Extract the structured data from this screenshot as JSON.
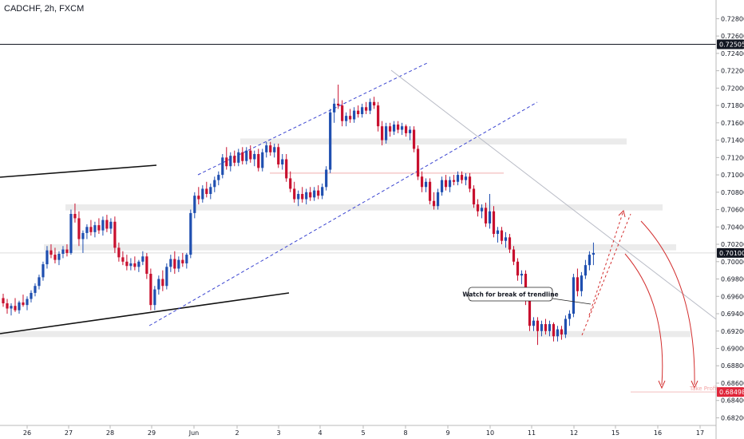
{
  "chart_data": {
    "type": "candlestick",
    "title": "CADCHF, 2h, FXCM",
    "symbol": "CADCHF",
    "interval": "2h",
    "source": "FXCM",
    "ylim": [
      0.6814,
      0.7296
    ],
    "y_ticks": [
      "0.72800",
      "0.72600",
      "0.72400",
      "0.72200",
      "0.72000",
      "0.71800",
      "0.71600",
      "0.71400",
      "0.71200",
      "0.71000",
      "0.70800",
      "0.70600",
      "0.70400",
      "0.70200",
      "0.70000",
      "0.69800",
      "0.69600",
      "0.69400",
      "0.69200",
      "0.69000",
      "0.68800",
      "0.68600",
      "0.68400",
      "0.68200"
    ],
    "x_ticks": [
      "26",
      "27",
      "28",
      "29",
      "Jun",
      "2",
      "3",
      "4",
      "5",
      "8",
      "9",
      "10",
      "11",
      "12",
      "15",
      "16",
      "17"
    ],
    "price_markers": [
      {
        "label": "0.72505",
        "value": 0.72505,
        "color": "#131722"
      },
      {
        "label": "0.70100",
        "value": 0.701,
        "color": "#131722"
      },
      {
        "label": "0.68498",
        "value": 0.68498,
        "color": "#e0263a"
      }
    ],
    "annotations": {
      "note": "Watch for break of trendline",
      "take_profit": "Take Profit"
    },
    "colors": {
      "up": "#1f4fb0",
      "down": "#c8102e",
      "grid": "#e6e6e6",
      "zone": "#ebebeb",
      "channel": "#3b45d1",
      "target": "#d32f2f"
    },
    "zones": [
      {
        "low": 0.7135,
        "high": 0.7142
      },
      {
        "low": 0.7059,
        "high": 0.7066
      },
      {
        "low": 0.7013,
        "high": 0.702
      },
      {
        "low": 0.6913,
        "high": 0.692
      }
    ],
    "candles": [
      {
        "o": 0.6958,
        "h": 0.6963,
        "l": 0.6948,
        "c": 0.6952
      },
      {
        "o": 0.6952,
        "h": 0.6957,
        "l": 0.694,
        "c": 0.6946
      },
      {
        "o": 0.6946,
        "h": 0.6952,
        "l": 0.6938,
        "c": 0.6949
      },
      {
        "o": 0.6949,
        "h": 0.6958,
        "l": 0.6942,
        "c": 0.6944
      },
      {
        "o": 0.6944,
        "h": 0.6955,
        "l": 0.694,
        "c": 0.6953
      },
      {
        "o": 0.6953,
        "h": 0.6962,
        "l": 0.6948,
        "c": 0.695
      },
      {
        "o": 0.695,
        "h": 0.696,
        "l": 0.6944,
        "c": 0.6957
      },
      {
        "o": 0.6957,
        "h": 0.6967,
        "l": 0.6953,
        "c": 0.6964
      },
      {
        "o": 0.6964,
        "h": 0.6975,
        "l": 0.696,
        "c": 0.6972
      },
      {
        "o": 0.6972,
        "h": 0.6985,
        "l": 0.6968,
        "c": 0.6982
      },
      {
        "o": 0.6982,
        "h": 0.7,
        "l": 0.6978,
        "c": 0.6997
      },
      {
        "o": 0.6997,
        "h": 0.7018,
        "l": 0.6992,
        "c": 0.7013
      },
      {
        "o": 0.7013,
        "h": 0.702,
        "l": 0.7004,
        "c": 0.7008
      },
      {
        "o": 0.7008,
        "h": 0.7016,
        "l": 0.6998,
        "c": 0.7002
      },
      {
        "o": 0.7002,
        "h": 0.7012,
        "l": 0.6996,
        "c": 0.7009
      },
      {
        "o": 0.7009,
        "h": 0.7018,
        "l": 0.7004,
        "c": 0.7014
      },
      {
        "o": 0.7014,
        "h": 0.702,
        "l": 0.7006,
        "c": 0.701
      },
      {
        "o": 0.701,
        "h": 0.706,
        "l": 0.7008,
        "c": 0.7055
      },
      {
        "o": 0.7055,
        "h": 0.7067,
        "l": 0.7045,
        "c": 0.705
      },
      {
        "o": 0.705,
        "h": 0.7058,
        "l": 0.7018,
        "c": 0.7026
      },
      {
        "o": 0.7026,
        "h": 0.7036,
        "l": 0.701,
        "c": 0.7033
      },
      {
        "o": 0.7033,
        "h": 0.7043,
        "l": 0.7026,
        "c": 0.704
      },
      {
        "o": 0.704,
        "h": 0.7048,
        "l": 0.703,
        "c": 0.7034
      },
      {
        "o": 0.7034,
        "h": 0.7046,
        "l": 0.7028,
        "c": 0.7042
      },
      {
        "o": 0.7042,
        "h": 0.705,
        "l": 0.7032,
        "c": 0.7036
      },
      {
        "o": 0.7036,
        "h": 0.7052,
        "l": 0.703,
        "c": 0.7048
      },
      {
        "o": 0.7048,
        "h": 0.7054,
        "l": 0.7034,
        "c": 0.7038
      },
      {
        "o": 0.7038,
        "h": 0.705,
        "l": 0.7032,
        "c": 0.7046
      },
      {
        "o": 0.7046,
        "h": 0.7052,
        "l": 0.701,
        "c": 0.7016
      },
      {
        "o": 0.7016,
        "h": 0.7022,
        "l": 0.7,
        "c": 0.7005
      },
      {
        "o": 0.7005,
        "h": 0.7012,
        "l": 0.6996,
        "c": 0.7
      },
      {
        "o": 0.7,
        "h": 0.7008,
        "l": 0.699,
        "c": 0.6995
      },
      {
        "o": 0.6995,
        "h": 0.7004,
        "l": 0.699,
        "c": 0.6998
      },
      {
        "o": 0.6998,
        "h": 0.7006,
        "l": 0.699,
        "c": 0.6994
      },
      {
        "o": 0.6994,
        "h": 0.7002,
        "l": 0.6988,
        "c": 0.7
      },
      {
        "o": 0.7,
        "h": 0.7012,
        "l": 0.6996,
        "c": 0.7006
      },
      {
        "o": 0.7006,
        "h": 0.701,
        "l": 0.698,
        "c": 0.6986
      },
      {
        "o": 0.6986,
        "h": 0.6992,
        "l": 0.6944,
        "c": 0.695
      },
      {
        "o": 0.695,
        "h": 0.6972,
        "l": 0.6944,
        "c": 0.6968
      },
      {
        "o": 0.6968,
        "h": 0.6984,
        "l": 0.6962,
        "c": 0.698
      },
      {
        "o": 0.698,
        "h": 0.699,
        "l": 0.6966,
        "c": 0.6972
      },
      {
        "o": 0.6972,
        "h": 0.6998,
        "l": 0.6968,
        "c": 0.6994
      },
      {
        "o": 0.6994,
        "h": 0.7008,
        "l": 0.6988,
        "c": 0.7003
      },
      {
        "o": 0.7003,
        "h": 0.7012,
        "l": 0.6986,
        "c": 0.6992
      },
      {
        "o": 0.6992,
        "h": 0.7006,
        "l": 0.6988,
        "c": 0.7002
      },
      {
        "o": 0.7002,
        "h": 0.701,
        "l": 0.6994,
        "c": 0.6998
      },
      {
        "o": 0.6998,
        "h": 0.701,
        "l": 0.6992,
        "c": 0.7008
      },
      {
        "o": 0.7008,
        "h": 0.706,
        "l": 0.7004,
        "c": 0.7056
      },
      {
        "o": 0.7056,
        "h": 0.708,
        "l": 0.705,
        "c": 0.7076
      },
      {
        "o": 0.7076,
        "h": 0.7086,
        "l": 0.7066,
        "c": 0.7072
      },
      {
        "o": 0.7072,
        "h": 0.7088,
        "l": 0.7068,
        "c": 0.7084
      },
      {
        "o": 0.7084,
        "h": 0.7092,
        "l": 0.7074,
        "c": 0.7078
      },
      {
        "o": 0.7078,
        "h": 0.709,
        "l": 0.7072,
        "c": 0.7086
      },
      {
        "o": 0.7086,
        "h": 0.7098,
        "l": 0.708,
        "c": 0.7094
      },
      {
        "o": 0.7094,
        "h": 0.7104,
        "l": 0.7088,
        "c": 0.71
      },
      {
        "o": 0.71,
        "h": 0.7124,
        "l": 0.7096,
        "c": 0.712
      },
      {
        "o": 0.712,
        "h": 0.7132,
        "l": 0.7106,
        "c": 0.711
      },
      {
        "o": 0.711,
        "h": 0.7126,
        "l": 0.7104,
        "c": 0.7122
      },
      {
        "o": 0.7122,
        "h": 0.7128,
        "l": 0.711,
        "c": 0.7114
      },
      {
        "o": 0.7114,
        "h": 0.713,
        "l": 0.711,
        "c": 0.7126
      },
      {
        "o": 0.7126,
        "h": 0.7132,
        "l": 0.7112,
        "c": 0.7116
      },
      {
        "o": 0.7116,
        "h": 0.7132,
        "l": 0.7112,
        "c": 0.7128
      },
      {
        "o": 0.7128,
        "h": 0.7134,
        "l": 0.7114,
        "c": 0.7118
      },
      {
        "o": 0.7118,
        "h": 0.7128,
        "l": 0.711,
        "c": 0.7124
      },
      {
        "o": 0.7124,
        "h": 0.713,
        "l": 0.7104,
        "c": 0.7108
      },
      {
        "o": 0.7108,
        "h": 0.713,
        "l": 0.7104,
        "c": 0.7126
      },
      {
        "o": 0.7126,
        "h": 0.7138,
        "l": 0.712,
        "c": 0.7134
      },
      {
        "o": 0.7134,
        "h": 0.7138,
        "l": 0.7122,
        "c": 0.7126
      },
      {
        "o": 0.7126,
        "h": 0.7136,
        "l": 0.712,
        "c": 0.7132
      },
      {
        "o": 0.7132,
        "h": 0.7136,
        "l": 0.7108,
        "c": 0.7112
      },
      {
        "o": 0.7112,
        "h": 0.7124,
        "l": 0.7106,
        "c": 0.7118
      },
      {
        "o": 0.7118,
        "h": 0.7124,
        "l": 0.7092,
        "c": 0.7096
      },
      {
        "o": 0.7096,
        "h": 0.7104,
        "l": 0.708,
        "c": 0.7084
      },
      {
        "o": 0.7084,
        "h": 0.7092,
        "l": 0.7068,
        "c": 0.7072
      },
      {
        "o": 0.7072,
        "h": 0.7082,
        "l": 0.7064,
        "c": 0.7078
      },
      {
        "o": 0.7078,
        "h": 0.7086,
        "l": 0.7068,
        "c": 0.7072
      },
      {
        "o": 0.7072,
        "h": 0.7084,
        "l": 0.7066,
        "c": 0.708
      },
      {
        "o": 0.708,
        "h": 0.7086,
        "l": 0.707,
        "c": 0.7074
      },
      {
        "o": 0.7074,
        "h": 0.7086,
        "l": 0.707,
        "c": 0.7082
      },
      {
        "o": 0.7082,
        "h": 0.7088,
        "l": 0.7072,
        "c": 0.7076
      },
      {
        "o": 0.7076,
        "h": 0.709,
        "l": 0.7072,
        "c": 0.7086
      },
      {
        "o": 0.7086,
        "h": 0.711,
        "l": 0.7082,
        "c": 0.7106
      },
      {
        "o": 0.7106,
        "h": 0.7176,
        "l": 0.7102,
        "c": 0.7172
      },
      {
        "o": 0.7172,
        "h": 0.7188,
        "l": 0.716,
        "c": 0.7182
      },
      {
        "o": 0.7182,
        "h": 0.7204,
        "l": 0.7176,
        "c": 0.718
      },
      {
        "o": 0.718,
        "h": 0.7186,
        "l": 0.7156,
        "c": 0.7162
      },
      {
        "o": 0.7162,
        "h": 0.7172,
        "l": 0.7156,
        "c": 0.7168
      },
      {
        "o": 0.7168,
        "h": 0.7176,
        "l": 0.716,
        "c": 0.7164
      },
      {
        "o": 0.7164,
        "h": 0.7178,
        "l": 0.716,
        "c": 0.7174
      },
      {
        "o": 0.7174,
        "h": 0.718,
        "l": 0.7166,
        "c": 0.717
      },
      {
        "o": 0.717,
        "h": 0.7182,
        "l": 0.7166,
        "c": 0.7178
      },
      {
        "o": 0.7178,
        "h": 0.7184,
        "l": 0.717,
        "c": 0.7174
      },
      {
        "o": 0.7174,
        "h": 0.7188,
        "l": 0.717,
        "c": 0.7184
      },
      {
        "o": 0.7184,
        "h": 0.719,
        "l": 0.7176,
        "c": 0.718
      },
      {
        "o": 0.718,
        "h": 0.7184,
        "l": 0.715,
        "c": 0.7156
      },
      {
        "o": 0.7156,
        "h": 0.7162,
        "l": 0.7134,
        "c": 0.714
      },
      {
        "o": 0.714,
        "h": 0.716,
        "l": 0.7136,
        "c": 0.7156
      },
      {
        "o": 0.7156,
        "h": 0.716,
        "l": 0.7144,
        "c": 0.715
      },
      {
        "o": 0.715,
        "h": 0.7162,
        "l": 0.7146,
        "c": 0.7158
      },
      {
        "o": 0.7158,
        "h": 0.7162,
        "l": 0.7148,
        "c": 0.7152
      },
      {
        "o": 0.7152,
        "h": 0.716,
        "l": 0.7146,
        "c": 0.7156
      },
      {
        "o": 0.7156,
        "h": 0.7158,
        "l": 0.7144,
        "c": 0.7148
      },
      {
        "o": 0.7148,
        "h": 0.7156,
        "l": 0.714,
        "c": 0.7152
      },
      {
        "o": 0.7152,
        "h": 0.7156,
        "l": 0.7126,
        "c": 0.713
      },
      {
        "o": 0.713,
        "h": 0.7134,
        "l": 0.7094,
        "c": 0.7098
      },
      {
        "o": 0.7098,
        "h": 0.7104,
        "l": 0.708,
        "c": 0.7086
      },
      {
        "o": 0.7086,
        "h": 0.7096,
        "l": 0.708,
        "c": 0.7092
      },
      {
        "o": 0.7092,
        "h": 0.7096,
        "l": 0.7066,
        "c": 0.707
      },
      {
        "o": 0.707,
        "h": 0.708,
        "l": 0.706,
        "c": 0.7064
      },
      {
        "o": 0.7064,
        "h": 0.7084,
        "l": 0.706,
        "c": 0.708
      },
      {
        "o": 0.708,
        "h": 0.7098,
        "l": 0.7076,
        "c": 0.7094
      },
      {
        "o": 0.7094,
        "h": 0.71,
        "l": 0.7082,
        "c": 0.7086
      },
      {
        "o": 0.7086,
        "h": 0.7098,
        "l": 0.708,
        "c": 0.7094
      },
      {
        "o": 0.7094,
        "h": 0.71,
        "l": 0.7088,
        "c": 0.7092
      },
      {
        "o": 0.7092,
        "h": 0.7104,
        "l": 0.7088,
        "c": 0.71
      },
      {
        "o": 0.71,
        "h": 0.7104,
        "l": 0.709,
        "c": 0.7094
      },
      {
        "o": 0.7094,
        "h": 0.7102,
        "l": 0.7088,
        "c": 0.7098
      },
      {
        "o": 0.7098,
        "h": 0.7102,
        "l": 0.708,
        "c": 0.7084
      },
      {
        "o": 0.7084,
        "h": 0.7088,
        "l": 0.7062,
        "c": 0.7066
      },
      {
        "o": 0.7066,
        "h": 0.7072,
        "l": 0.7052,
        "c": 0.7058
      },
      {
        "o": 0.7058,
        "h": 0.7066,
        "l": 0.705,
        "c": 0.7062
      },
      {
        "o": 0.7062,
        "h": 0.7068,
        "l": 0.704,
        "c": 0.7044
      },
      {
        "o": 0.7044,
        "h": 0.7078,
        "l": 0.7038,
        "c": 0.7058
      },
      {
        "o": 0.7058,
        "h": 0.7064,
        "l": 0.7028,
        "c": 0.7032
      },
      {
        "o": 0.7032,
        "h": 0.704,
        "l": 0.7022,
        "c": 0.7036
      },
      {
        "o": 0.7036,
        "h": 0.704,
        "l": 0.702,
        "c": 0.7024
      },
      {
        "o": 0.7024,
        "h": 0.7034,
        "l": 0.7016,
        "c": 0.7028
      },
      {
        "o": 0.7028,
        "h": 0.7032,
        "l": 0.701,
        "c": 0.7014
      },
      {
        "o": 0.7014,
        "h": 0.7018,
        "l": 0.6996,
        "c": 0.7
      },
      {
        "o": 0.7,
        "h": 0.7004,
        "l": 0.6978,
        "c": 0.6984
      },
      {
        "o": 0.6984,
        "h": 0.699,
        "l": 0.6974,
        "c": 0.6986
      },
      {
        "o": 0.6986,
        "h": 0.699,
        "l": 0.695,
        "c": 0.6956
      },
      {
        "o": 0.6956,
        "h": 0.6962,
        "l": 0.692,
        "c": 0.6926
      },
      {
        "o": 0.6926,
        "h": 0.6936,
        "l": 0.692,
        "c": 0.6932
      },
      {
        "o": 0.6932,
        "h": 0.6936,
        "l": 0.6904,
        "c": 0.692
      },
      {
        "o": 0.692,
        "h": 0.6932,
        "l": 0.6914,
        "c": 0.6928
      },
      {
        "o": 0.6928,
        "h": 0.6934,
        "l": 0.6916,
        "c": 0.692
      },
      {
        "o": 0.692,
        "h": 0.6932,
        "l": 0.6914,
        "c": 0.6928
      },
      {
        "o": 0.6928,
        "h": 0.693,
        "l": 0.6908,
        "c": 0.6914
      },
      {
        "o": 0.6914,
        "h": 0.6926,
        "l": 0.6908,
        "c": 0.6922
      },
      {
        "o": 0.6922,
        "h": 0.6926,
        "l": 0.691,
        "c": 0.6916
      },
      {
        "o": 0.6916,
        "h": 0.6938,
        "l": 0.6912,
        "c": 0.6934
      },
      {
        "o": 0.6934,
        "h": 0.6944,
        "l": 0.6926,
        "c": 0.694
      },
      {
        "o": 0.694,
        "h": 0.6986,
        "l": 0.6936,
        "c": 0.6982
      },
      {
        "o": 0.6982,
        "h": 0.6992,
        "l": 0.696,
        "c": 0.6966
      },
      {
        "o": 0.6966,
        "h": 0.6988,
        "l": 0.696,
        "c": 0.6984
      },
      {
        "o": 0.6984,
        "h": 0.7002,
        "l": 0.698,
        "c": 0.6996
      },
      {
        "o": 0.6996,
        "h": 0.7012,
        "l": 0.699,
        "c": 0.7008
      },
      {
        "o": 0.7008,
        "h": 0.7022,
        "l": 0.6996,
        "c": 0.701
      }
    ]
  }
}
